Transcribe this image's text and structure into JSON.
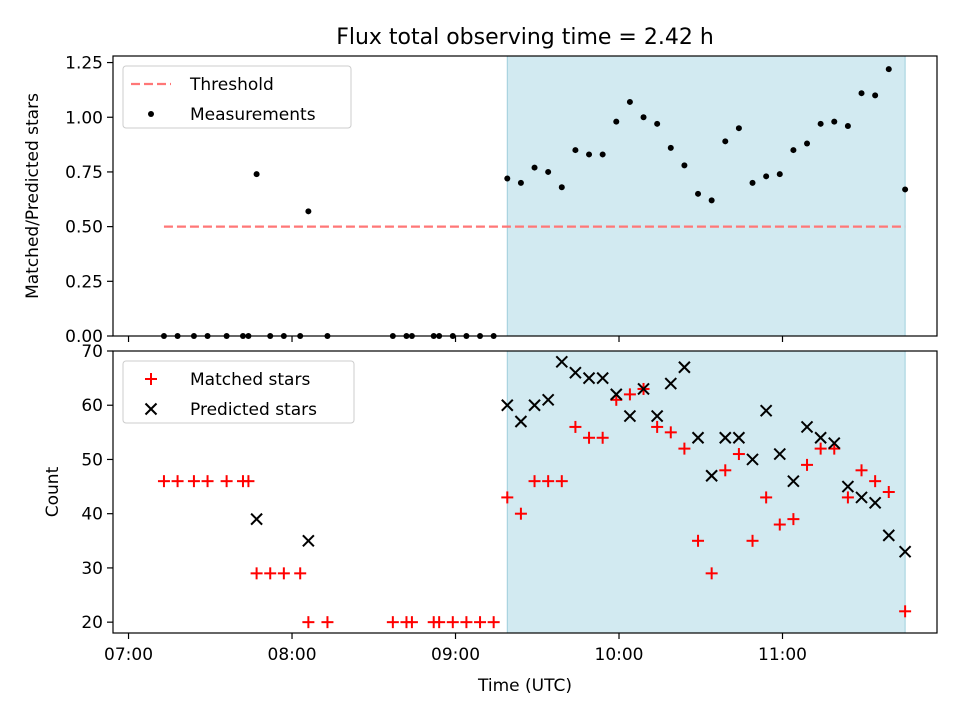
{
  "figure": {
    "title": "Flux total observing time = 2.42 h",
    "xlabel": "Time (UTC)",
    "x_ticks": [
      {
        "t": 7.0,
        "label": "07:00"
      },
      {
        "t": 8.0,
        "label": "08:00"
      },
      {
        "t": 9.0,
        "label": "09:00"
      },
      {
        "t": 10.0,
        "label": "10:00"
      },
      {
        "t": 11.0,
        "label": "11:00"
      }
    ],
    "colors": {
      "threshold": "#ff7777",
      "shade": "#add8e6",
      "matched": "#ff0000",
      "predicted": "#000000",
      "measurement": "#000000"
    }
  },
  "chart_data": [
    {
      "type": "scatter",
      "ylabel": "Matched/Predicted stars",
      "ylim": [
        0,
        1.28
      ],
      "yticks": [
        "0.00",
        "0.25",
        "0.50",
        "0.75",
        "1.00",
        "1.25"
      ],
      "legend": [
        "Threshold",
        "Measurements"
      ],
      "legend_position": "top-left",
      "shaded_interval": [
        "09:19",
        "11:45"
      ],
      "threshold": {
        "name": "Threshold",
        "y": 0.5,
        "x_range": [
          "07:13",
          "11:45"
        ]
      },
      "series": [
        {
          "name": "Measurements",
          "points": [
            [
              "07:13",
              0.0
            ],
            [
              "07:18",
              0.0
            ],
            [
              "07:24",
              0.0
            ],
            [
              "07:29",
              0.0
            ],
            [
              "07:36",
              0.0
            ],
            [
              "07:42",
              0.0
            ],
            [
              "07:44",
              0.0
            ],
            [
              "07:47",
              0.74
            ],
            [
              "07:52",
              0.0
            ],
            [
              "07:57",
              0.0
            ],
            [
              "08:03",
              0.0
            ],
            [
              "08:06",
              0.57
            ],
            [
              "08:13",
              0.0
            ],
            [
              "08:37",
              0.0
            ],
            [
              "08:42",
              0.0
            ],
            [
              "08:44",
              0.0
            ],
            [
              "08:52",
              0.0
            ],
            [
              "08:54",
              0.0
            ],
            [
              "08:59",
              0.0
            ],
            [
              "09:04",
              0.0
            ],
            [
              "09:09",
              0.0
            ],
            [
              "09:14",
              0.0
            ],
            [
              "09:19",
              0.72
            ],
            [
              "09:24",
              0.7
            ],
            [
              "09:29",
              0.77
            ],
            [
              "09:34",
              0.75
            ],
            [
              "09:39",
              0.68
            ],
            [
              "09:44",
              0.85
            ],
            [
              "09:49",
              0.83
            ],
            [
              "09:54",
              0.83
            ],
            [
              "09:59",
              0.98
            ],
            [
              "10:04",
              1.07
            ],
            [
              "10:09",
              1.0
            ],
            [
              "10:14",
              0.97
            ],
            [
              "10:19",
              0.86
            ],
            [
              "10:24",
              0.78
            ],
            [
              "10:29",
              0.65
            ],
            [
              "10:34",
              0.62
            ],
            [
              "10:39",
              0.89
            ],
            [
              "10:44",
              0.95
            ],
            [
              "10:49",
              0.7
            ],
            [
              "10:54",
              0.73
            ],
            [
              "10:59",
              0.74
            ],
            [
              "11:04",
              0.85
            ],
            [
              "11:09",
              0.88
            ],
            [
              "11:14",
              0.97
            ],
            [
              "11:19",
              0.98
            ],
            [
              "11:24",
              0.96
            ],
            [
              "11:29",
              1.11
            ],
            [
              "11:34",
              1.1
            ],
            [
              "11:39",
              1.22
            ],
            [
              "11:45",
              0.67
            ]
          ]
        }
      ]
    },
    {
      "type": "scatter",
      "ylabel": "Count",
      "ylim": [
        18,
        70
      ],
      "yticks": [
        "20",
        "30",
        "40",
        "50",
        "60",
        "70"
      ],
      "legend": [
        "Matched stars",
        "Predicted stars"
      ],
      "legend_position": "top-left",
      "shaded_interval": [
        "09:19",
        "11:45"
      ],
      "series": [
        {
          "name": "Matched stars",
          "marker": "+",
          "points": [
            [
              "07:13",
              46
            ],
            [
              "07:18",
              46
            ],
            [
              "07:24",
              46
            ],
            [
              "07:29",
              46
            ],
            [
              "07:36",
              46
            ],
            [
              "07:42",
              46
            ],
            [
              "07:44",
              46
            ],
            [
              "07:47",
              29
            ],
            [
              "07:52",
              29
            ],
            [
              "07:57",
              29
            ],
            [
              "08:03",
              29
            ],
            [
              "08:06",
              20
            ],
            [
              "08:13",
              20
            ],
            [
              "08:37",
              20
            ],
            [
              "08:42",
              20
            ],
            [
              "08:44",
              20
            ],
            [
              "08:52",
              20
            ],
            [
              "08:54",
              20
            ],
            [
              "08:59",
              20
            ],
            [
              "09:04",
              20
            ],
            [
              "09:09",
              20
            ],
            [
              "09:14",
              20
            ],
            [
              "09:19",
              43
            ],
            [
              "09:24",
              40
            ],
            [
              "09:29",
              46
            ],
            [
              "09:34",
              46
            ],
            [
              "09:39",
              46
            ],
            [
              "09:44",
              56
            ],
            [
              "09:49",
              54
            ],
            [
              "09:54",
              54
            ],
            [
              "09:59",
              61
            ],
            [
              "10:04",
              62
            ],
            [
              "10:09",
              63
            ],
            [
              "10:14",
              56
            ],
            [
              "10:19",
              55
            ],
            [
              "10:24",
              52
            ],
            [
              "10:29",
              35
            ],
            [
              "10:34",
              29
            ],
            [
              "10:39",
              48
            ],
            [
              "10:44",
              51
            ],
            [
              "10:49",
              35
            ],
            [
              "10:54",
              43
            ],
            [
              "10:59",
              38
            ],
            [
              "11:04",
              39
            ],
            [
              "11:09",
              49
            ],
            [
              "11:14",
              52
            ],
            [
              "11:19",
              52
            ],
            [
              "11:24",
              43
            ],
            [
              "11:29",
              48
            ],
            [
              "11:34",
              46
            ],
            [
              "11:39",
              44
            ],
            [
              "11:45",
              22
            ]
          ]
        },
        {
          "name": "Predicted stars",
          "marker": "x",
          "points": [
            [
              "07:47",
              39
            ],
            [
              "08:06",
              35
            ],
            [
              "09:19",
              60
            ],
            [
              "09:24",
              57
            ],
            [
              "09:29",
              60
            ],
            [
              "09:34",
              61
            ],
            [
              "09:39",
              68
            ],
            [
              "09:44",
              66
            ],
            [
              "09:49",
              65
            ],
            [
              "09:54",
              65
            ],
            [
              "09:59",
              62
            ],
            [
              "10:04",
              58
            ],
            [
              "10:09",
              63
            ],
            [
              "10:14",
              58
            ],
            [
              "10:19",
              64
            ],
            [
              "10:24",
              67
            ],
            [
              "10:29",
              54
            ],
            [
              "10:34",
              47
            ],
            [
              "10:39",
              54
            ],
            [
              "10:44",
              54
            ],
            [
              "10:49",
              50
            ],
            [
              "10:54",
              59
            ],
            [
              "10:59",
              51
            ],
            [
              "11:04",
              46
            ],
            [
              "11:09",
              56
            ],
            [
              "11:14",
              54
            ],
            [
              "11:19",
              53
            ],
            [
              "11:24",
              45
            ],
            [
              "11:29",
              43
            ],
            [
              "11:34",
              42
            ],
            [
              "11:39",
              36
            ],
            [
              "11:45",
              33
            ]
          ]
        }
      ]
    }
  ]
}
